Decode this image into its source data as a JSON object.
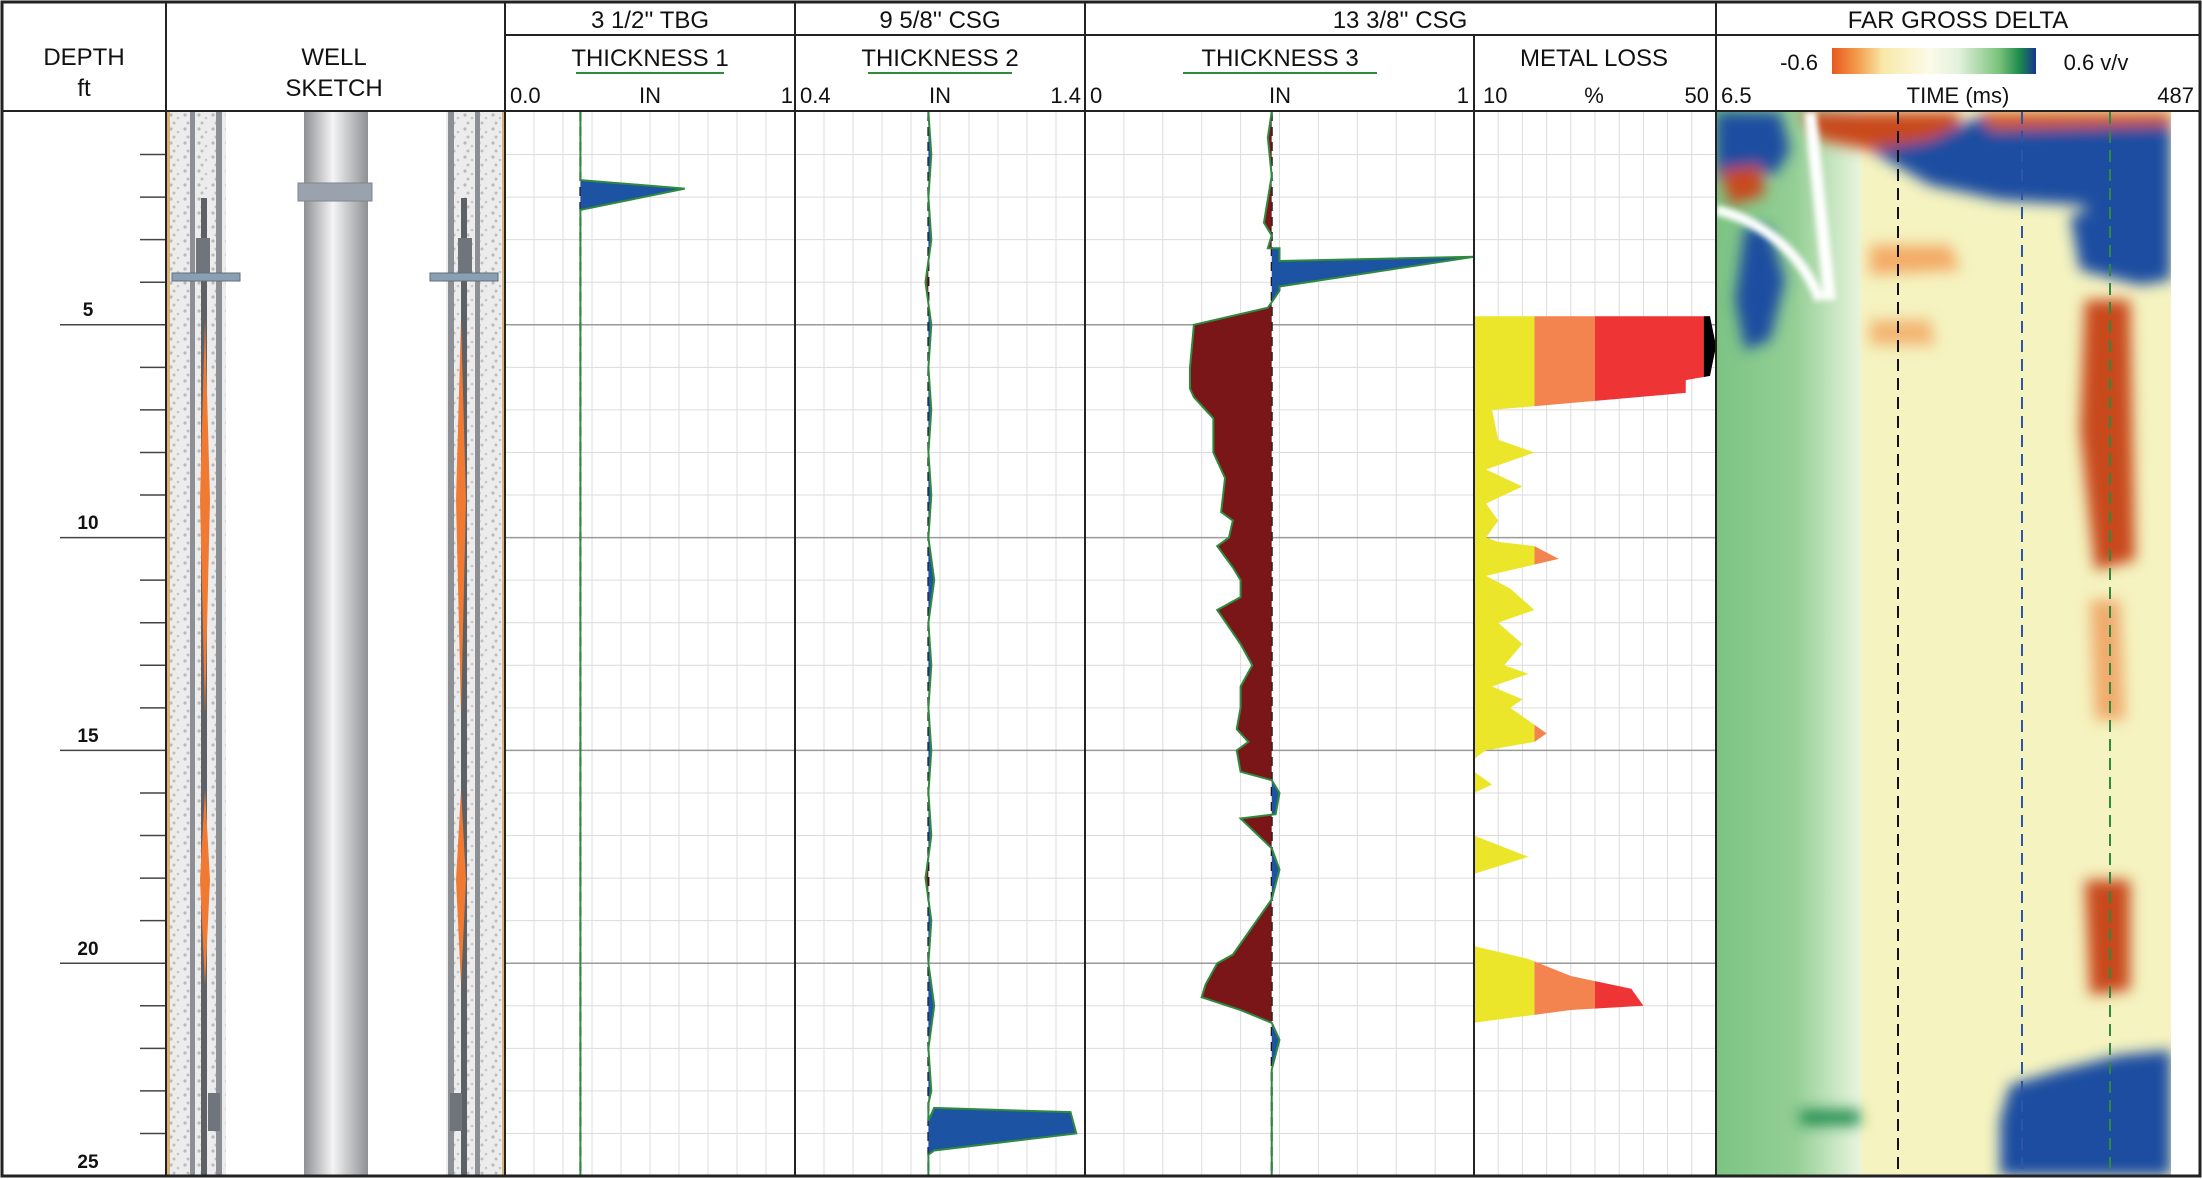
{
  "headers": {
    "depth": {
      "line1": "DEPTH",
      "line2": "ft"
    },
    "well": {
      "line1": "WELL",
      "line2": "SKETCH"
    },
    "tbg": {
      "group": "3 1/2'' TBG",
      "curve": "THICKNESS 1",
      "unit": "IN",
      "min": "0.0",
      "max": "1"
    },
    "csg2": {
      "group": "9 5/8'' CSG",
      "curve": "THICKNESS 2",
      "unit": "IN",
      "min": "0.4",
      "max": "1.4"
    },
    "csg3": {
      "group": "13 3/8'' CSG",
      "curve": "THICKNESS 3",
      "unit": "IN",
      "min": "0",
      "max": "1"
    },
    "metal": {
      "curve": "METAL LOSS",
      "unit": "%",
      "min": "10",
      "max": "50"
    },
    "delta": {
      "group": "FAR GROSS DELTA",
      "scale_min": "-0.6",
      "scale_max": "0.6 v/v",
      "axis": "TIME (ms)",
      "min": "6.5",
      "max": "487"
    }
  },
  "depth_labels": [
    "5",
    "10",
    "15",
    "20",
    "25"
  ],
  "colors": {
    "curve_green": "#2f8a3e",
    "gain_blue": "#1d53a3",
    "loss_red": "#7a1518",
    "metal_yellow": "#ece62a",
    "metal_orange": "#f3834f",
    "metal_red": "#ee3434",
    "metal_black": "#000000",
    "delta_green": "#4fae5c",
    "delta_blue": "#123f9c",
    "delta_red": "#c8481d",
    "delta_yellow": "#f5f3c0"
  },
  "chart_data": [
    {
      "type": "line",
      "title": "THICKNESS 1",
      "xlabel": "IN",
      "xlim": [
        0,
        1
      ],
      "ylim": [
        0,
        25
      ],
      "series": [
        {
          "name": "THICKNESS 1",
          "x": [
            0.26,
            0.26,
            0.26,
            0.62,
            0.26,
            0.26,
            0.26
          ],
          "y": [
            0,
            1.5,
            1.6,
            1.8,
            2.3,
            2.4,
            25
          ]
        }
      ]
    },
    {
      "type": "line",
      "title": "THICKNESS 2",
      "xlabel": "IN",
      "xlim": [
        0.4,
        1.4
      ],
      "ylim": [
        0,
        25
      ],
      "series": [
        {
          "name": "THICKNESS 2",
          "x": [
            0.86,
            0.87,
            0.86,
            0.87,
            0.85,
            0.87,
            0.86,
            0.87,
            0.86,
            0.87,
            0.86,
            0.88,
            0.86,
            0.87,
            0.86,
            0.87,
            0.86,
            0.87,
            0.85,
            0.87,
            0.86,
            0.88,
            0.86,
            0.87,
            0.86,
            0.86,
            0.86,
            0.88,
            1.35,
            1.37,
            0.88,
            0.86,
            0.86
          ],
          "y": [
            0,
            1,
            2,
            3,
            4,
            5,
            6,
            7,
            8,
            9,
            10,
            11,
            12,
            13,
            14,
            15,
            16,
            17,
            18,
            19,
            20,
            21,
            22,
            23,
            23.3,
            23.5,
            23.7,
            23.4,
            23.5,
            24.0,
            24.4,
            24.5,
            25
          ]
        }
      ]
    },
    {
      "type": "line",
      "title": "THICKNESS 3",
      "xlabel": "IN",
      "xlim": [
        0,
        1
      ],
      "ylim": [
        0,
        25
      ],
      "series": [
        {
          "name": "THICKNESS 3",
          "x": [
            0.48,
            0.47,
            0.48,
            0.46,
            0.48,
            0.47,
            0.5,
            0.5,
            1.0,
            0.5,
            0.5,
            0.47,
            0.28,
            0.27,
            0.27,
            0.28,
            0.33,
            0.33,
            0.36,
            0.35,
            0.38,
            0.37,
            0.34,
            0.38,
            0.4,
            0.4,
            0.34,
            0.4,
            0.43,
            0.4,
            0.4,
            0.39,
            0.42,
            0.39,
            0.4,
            0.48,
            0.5,
            0.49,
            0.4,
            0.48,
            0.5,
            0.48,
            0.38,
            0.34,
            0.31,
            0.3,
            0.4,
            0.48,
            0.5,
            0.48,
            0.48
          ],
          "y": [
            0,
            0.6,
            1.5,
            2.6,
            2.9,
            3.2,
            3.2,
            3.5,
            3.4,
            4.1,
            4.2,
            4.6,
            5.0,
            6.0,
            6.5,
            6.7,
            7.2,
            8.0,
            8.6,
            9.4,
            9.6,
            10.0,
            10.2,
            10.7,
            11.0,
            11.4,
            11.7,
            12.5,
            13.0,
            13.5,
            14.0,
            14.5,
            14.8,
            15.0,
            15.5,
            15.7,
            16.0,
            16.5,
            16.6,
            17.3,
            17.8,
            18.5,
            19.8,
            20.0,
            20.5,
            20.8,
            21.1,
            21.4,
            21.8,
            22.5,
            25
          ]
        }
      ]
    },
    {
      "type": "area",
      "title": "METAL LOSS",
      "xlabel": "%",
      "xlim": [
        10,
        50
      ],
      "ylim": [
        0,
        25
      ],
      "series": [
        {
          "name": "METAL LOSS",
          "x": [
            10,
            10,
            49,
            50,
            49,
            45,
            45,
            13,
            14,
            20,
            12,
            18,
            12,
            14,
            12,
            14,
            20,
            24,
            12,
            16,
            20,
            14,
            18,
            15,
            19,
            13,
            18,
            16,
            22,
            20,
            12,
            10,
            10,
            13,
            10,
            10,
            19,
            10,
            10,
            19,
            26,
            36,
            38,
            26,
            10,
            10
          ],
          "y": [
            0,
            4.8,
            4.8,
            5.5,
            6.2,
            6.3,
            6.6,
            7.0,
            7.7,
            8.0,
            8.4,
            8.8,
            9.2,
            9.6,
            10.0,
            10.1,
            10.2,
            10.5,
            10.9,
            11.2,
            11.7,
            12.0,
            12.5,
            13.0,
            13.2,
            13.5,
            13.8,
            14.0,
            14.6,
            14.8,
            15.0,
            15.2,
            15.5,
            15.8,
            16.0,
            17.0,
            17.5,
            17.9,
            19.6,
            19.9,
            20.3,
            20.6,
            21.0,
            21.1,
            21.4,
            25
          ]
        }
      ]
    }
  ]
}
